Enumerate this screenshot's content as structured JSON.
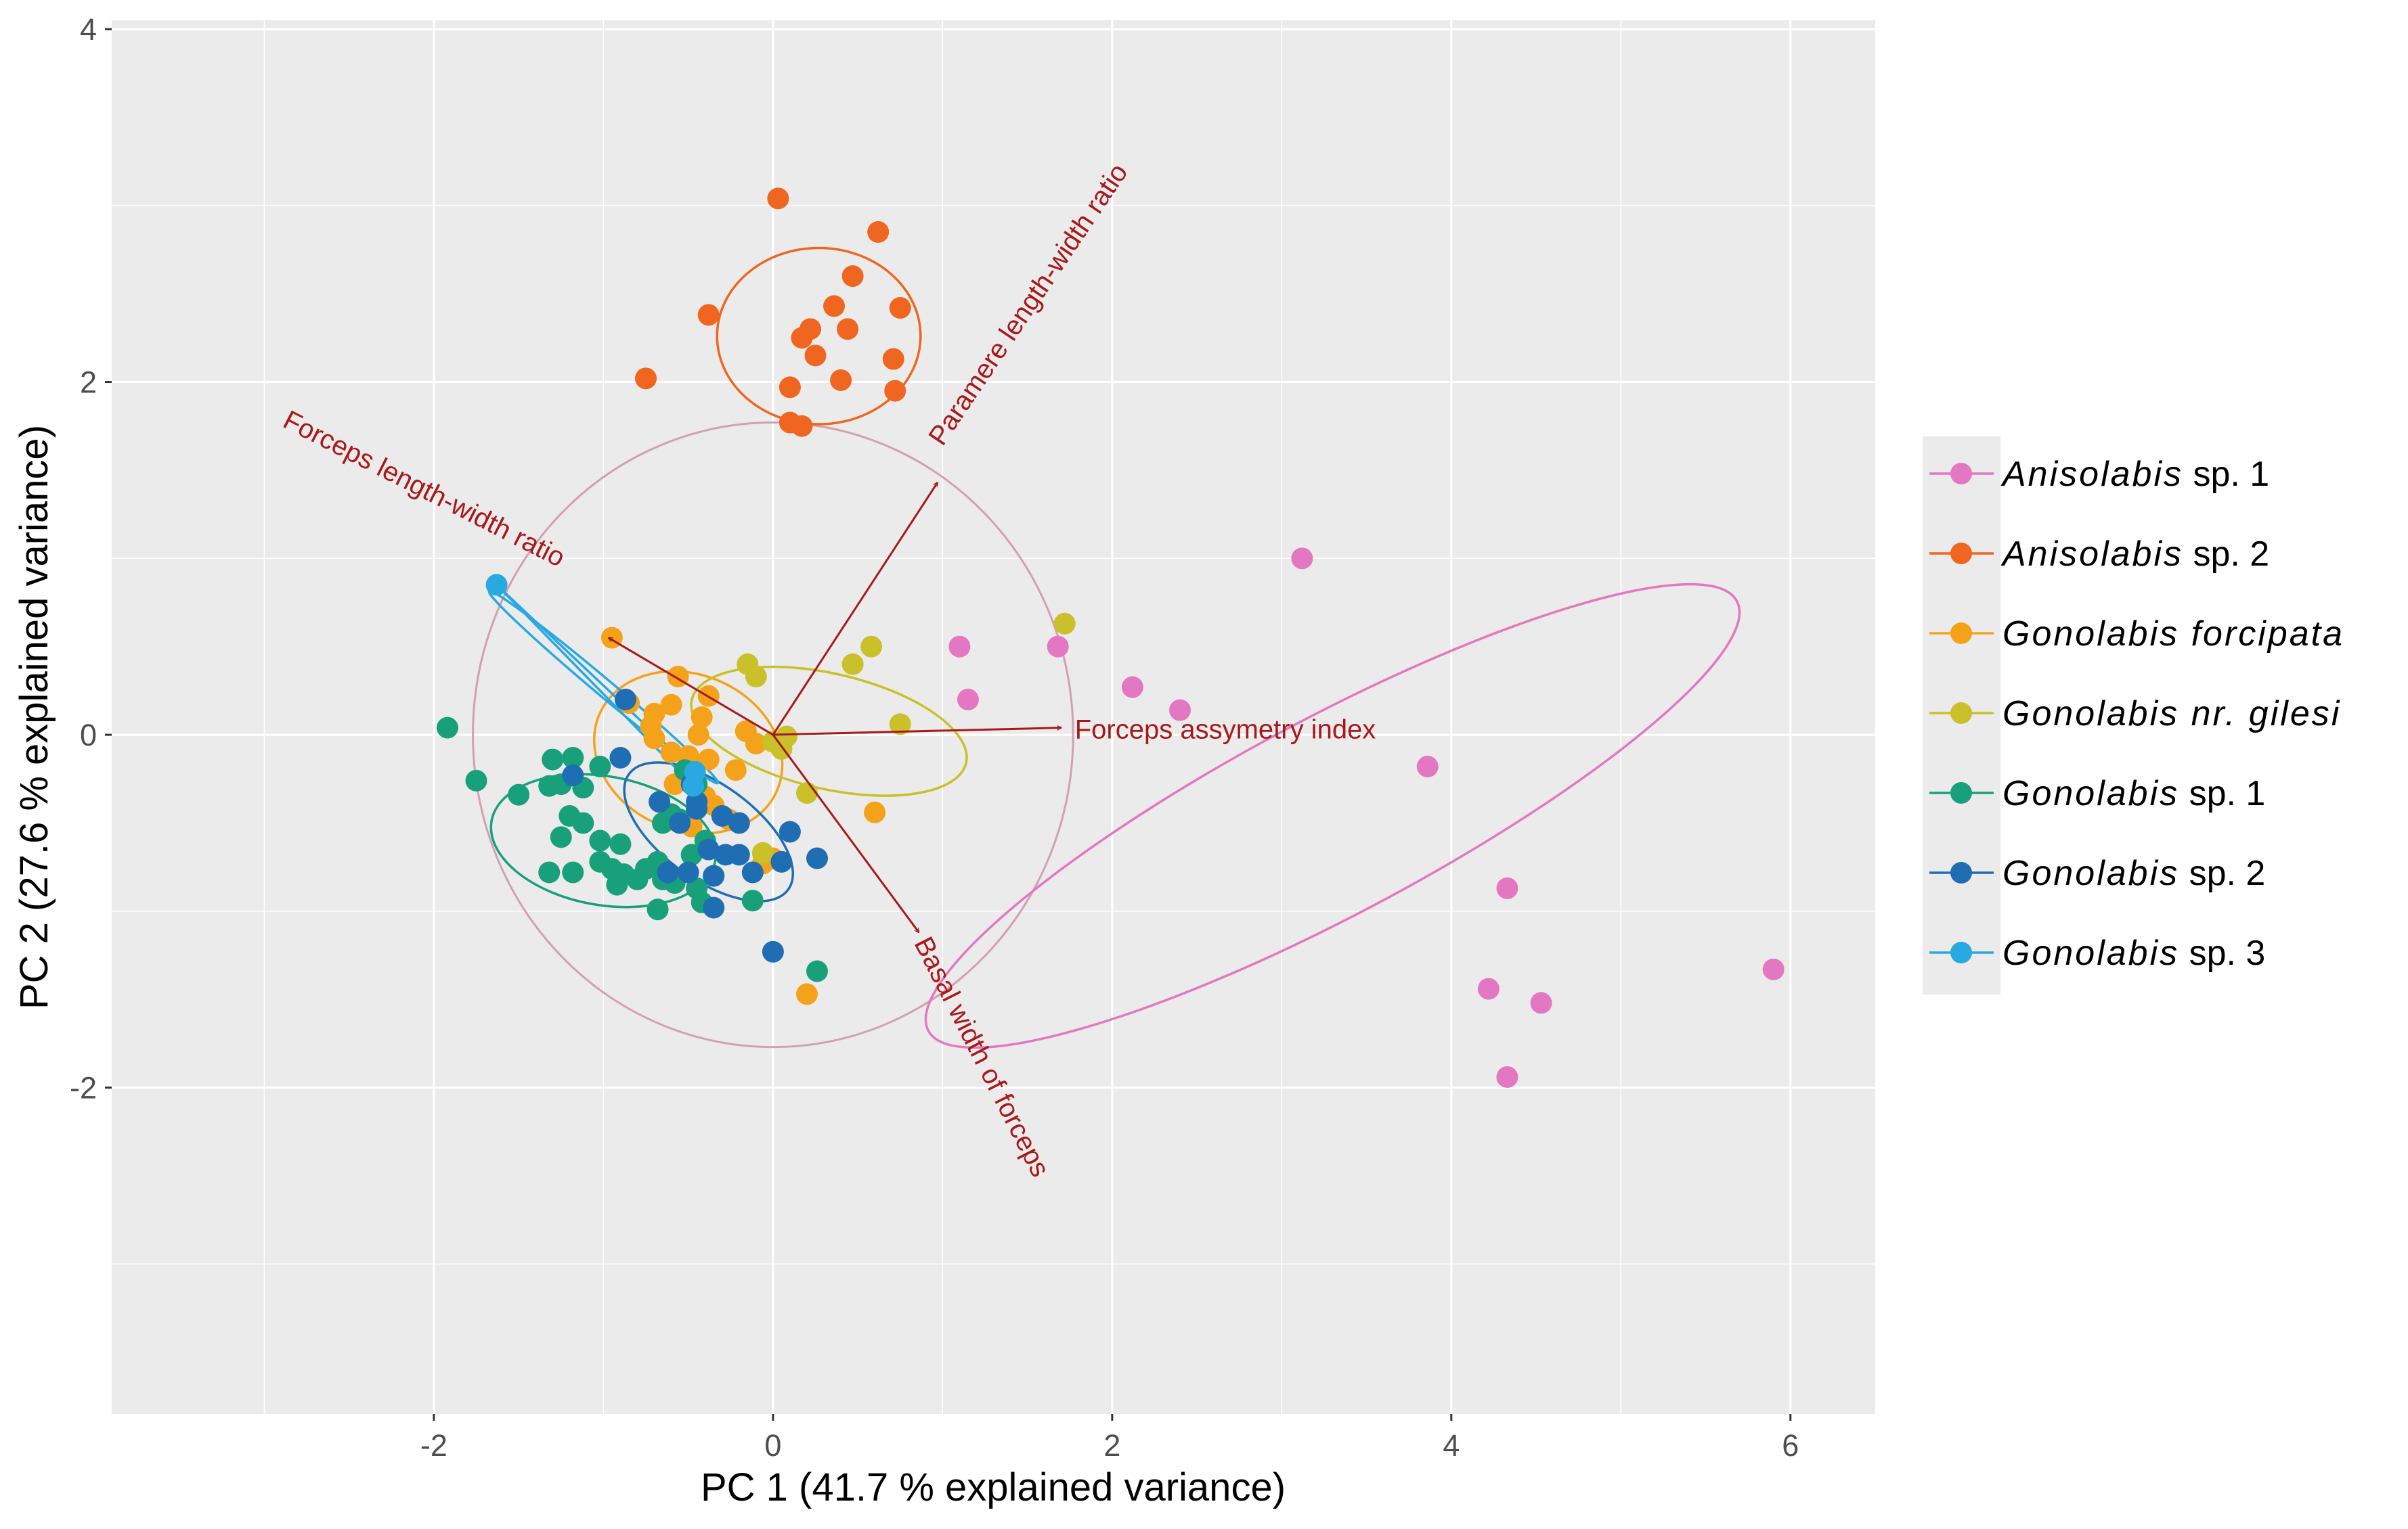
{
  "chart_data": {
    "type": "scatter",
    "xlabel": "PC 1 (41.7 % explained variance)",
    "ylabel": "PC 2 (27.6 % explained variance)",
    "xlim": [
      -3.9,
      6.5
    ],
    "ylim": [
      -3.85,
      4.05
    ],
    "x_ticks": [
      -2,
      0,
      2,
      4,
      6
    ],
    "y_ticks": [
      -2,
      0,
      2,
      4
    ],
    "x_tick_labels": [
      "-2",
      "0",
      "2",
      "4",
      "6"
    ],
    "y_tick_labels": [
      "-2",
      "0",
      "2",
      "4"
    ],
    "grid": true,
    "panel_background": "#ebebeb",
    "legend_position": "right",
    "series": [
      {
        "name_italic": "Anisolabis",
        "name_suffix": " sp. 1",
        "color": "#e377c2",
        "points": [
          [
            1.1,
            0.5
          ],
          [
            1.15,
            0.2
          ],
          [
            1.68,
            0.5
          ],
          [
            2.12,
            0.27
          ],
          [
            2.4,
            0.14
          ],
          [
            3.12,
            1.0
          ],
          [
            3.86,
            -0.18
          ],
          [
            4.33,
            -0.87
          ],
          [
            4.22,
            -1.44
          ],
          [
            4.53,
            -1.52
          ],
          [
            4.33,
            -1.94
          ],
          [
            5.9,
            -1.33
          ]
        ],
        "ellipse": {
          "cx": 3.3,
          "cy": -0.46,
          "rx": 2.7,
          "ry": 0.58,
          "angle": -28
        }
      },
      {
        "name_italic": "Anisolabis",
        "name_suffix": " sp. 2",
        "color": "#f0651f",
        "points": [
          [
            0.03,
            3.04
          ],
          [
            0.62,
            2.85
          ],
          [
            0.47,
            2.6
          ],
          [
            0.36,
            2.43
          ],
          [
            0.75,
            2.42
          ],
          [
            -0.38,
            2.38
          ],
          [
            0.22,
            2.3
          ],
          [
            0.17,
            2.25
          ],
          [
            0.44,
            2.3
          ],
          [
            0.25,
            2.15
          ],
          [
            0.71,
            2.13
          ],
          [
            -0.75,
            2.02
          ],
          [
            0.4,
            2.01
          ],
          [
            0.1,
            1.97
          ],
          [
            0.72,
            1.95
          ],
          [
            0.1,
            1.77
          ],
          [
            0.17,
            1.75
          ]
        ],
        "ellipse": {
          "cx": 0.27,
          "cy": 2.26,
          "rx": 0.6,
          "ry": 0.52,
          "angle": 0
        }
      },
      {
        "name_italic": "Gonolabis",
        "name_suffix": "  forcipata",
        "color": "#f5a21b",
        "points": [
          [
            -0.95,
            0.55
          ],
          [
            -0.56,
            0.33
          ],
          [
            -0.38,
            0.22
          ],
          [
            -0.85,
            0.18
          ],
          [
            -0.6,
            0.17
          ],
          [
            -0.7,
            0.12
          ],
          [
            -0.42,
            0.1
          ],
          [
            -0.72,
            0.05
          ],
          [
            -0.44,
            0.0
          ],
          [
            -0.16,
            0.02
          ],
          [
            -0.1,
            -0.05
          ],
          [
            -0.7,
            -0.02
          ],
          [
            -0.6,
            -0.1
          ],
          [
            -0.5,
            -0.12
          ],
          [
            -0.38,
            -0.14
          ],
          [
            -0.22,
            -0.2
          ],
          [
            -0.58,
            -0.28
          ],
          [
            -0.4,
            -0.35
          ],
          [
            -0.35,
            -0.4
          ],
          [
            -0.26,
            -0.48
          ],
          [
            -0.48,
            -0.52
          ],
          [
            0.6,
            -0.44
          ],
          [
            -0.06,
            -0.73
          ],
          [
            0.0,
            -0.7
          ],
          [
            0.2,
            -1.47
          ]
        ],
        "ellipse": {
          "cx": -0.5,
          "cy": -0.1,
          "rx": 0.57,
          "ry": 0.46,
          "angle": 23
        }
      },
      {
        "name_italic": "Gonolabis",
        "name_suffix": " nr. gilesi",
        "color": "#c9c02a",
        "points": [
          [
            1.72,
            0.63
          ],
          [
            0.58,
            0.5
          ],
          [
            0.47,
            0.4
          ],
          [
            -0.15,
            0.4
          ],
          [
            -0.1,
            0.33
          ],
          [
            0.75,
            0.06
          ],
          [
            0.08,
            -0.01
          ],
          [
            0.0,
            -0.04
          ],
          [
            0.05,
            -0.08
          ],
          [
            0.2,
            -0.33
          ],
          [
            -0.06,
            -0.67
          ]
        ],
        "ellipse": {
          "cx": 0.33,
          "cy": 0.02,
          "rx": 0.83,
          "ry": 0.34,
          "angle": 13
        }
      },
      {
        "name_italic": "Gonolabis",
        "name_suffix": " sp. 1",
        "color": "#18a07a",
        "points": [
          [
            -1.92,
            0.04
          ],
          [
            -1.75,
            -0.26
          ],
          [
            -1.3,
            -0.14
          ],
          [
            -1.18,
            -0.13
          ],
          [
            -1.5,
            -0.34
          ],
          [
            -1.32,
            -0.29
          ],
          [
            -1.25,
            -0.28
          ],
          [
            -1.12,
            -0.3
          ],
          [
            -1.02,
            -0.18
          ],
          [
            -1.2,
            -0.46
          ],
          [
            -1.12,
            -0.5
          ],
          [
            -1.02,
            -0.6
          ],
          [
            -1.25,
            -0.58
          ],
          [
            -0.9,
            -0.62
          ],
          [
            -0.65,
            -0.5
          ],
          [
            -0.55,
            -0.48
          ],
          [
            -0.6,
            -0.45
          ],
          [
            -1.32,
            -0.78
          ],
          [
            -1.18,
            -0.78
          ],
          [
            -1.02,
            -0.72
          ],
          [
            -0.95,
            -0.76
          ],
          [
            -0.88,
            -0.79
          ],
          [
            -0.75,
            -0.76
          ],
          [
            -0.68,
            -0.72
          ],
          [
            -0.48,
            -0.68
          ],
          [
            -0.4,
            -0.6
          ],
          [
            -0.92,
            -0.85
          ],
          [
            -0.8,
            -0.82
          ],
          [
            -0.65,
            -0.82
          ],
          [
            -0.58,
            -0.84
          ],
          [
            -0.45,
            -0.87
          ],
          [
            -0.35,
            -0.8
          ],
          [
            -0.68,
            -0.99
          ],
          [
            -0.42,
            -0.95
          ],
          [
            -0.12,
            -0.94
          ],
          [
            0.26,
            -1.34
          ],
          [
            -0.52,
            -0.2
          ],
          [
            -0.45,
            -0.28
          ]
        ],
        "ellipse": {
          "cx": -1.0,
          "cy": -0.6,
          "rx": 0.67,
          "ry": 0.38,
          "angle": 10
        }
      },
      {
        "name_italic": "Gonolabis",
        "name_suffix": " sp. 2",
        "color": "#1f6db3",
        "points": [
          [
            -0.87,
            0.2
          ],
          [
            -1.18,
            -0.23
          ],
          [
            -0.9,
            -0.13
          ],
          [
            -0.67,
            -0.38
          ],
          [
            -0.48,
            -0.28
          ],
          [
            -0.45,
            -0.38
          ],
          [
            -0.55,
            -0.5
          ],
          [
            -0.45,
            -0.42
          ],
          [
            -0.3,
            -0.46
          ],
          [
            -0.2,
            -0.5
          ],
          [
            0.1,
            -0.55
          ],
          [
            -0.38,
            -0.65
          ],
          [
            -0.28,
            -0.68
          ],
          [
            -0.2,
            -0.68
          ],
          [
            0.26,
            -0.7
          ],
          [
            0.05,
            -0.72
          ],
          [
            -0.62,
            -0.78
          ],
          [
            -0.5,
            -0.78
          ],
          [
            -0.35,
            -0.8
          ],
          [
            -0.12,
            -0.78
          ],
          [
            -0.35,
            -0.98
          ],
          [
            0.0,
            -1.23
          ]
        ],
        "ellipse": {
          "cx": -0.38,
          "cy": -0.55,
          "rx": 0.58,
          "ry": 0.28,
          "angle": 36
        }
      },
      {
        "name_italic": "Gonolabis",
        "name_suffix": " sp. 3",
        "color": "#29a9e1",
        "points": [
          [
            -1.63,
            0.85
          ],
          [
            -0.47,
            -0.29
          ],
          [
            -0.46,
            -0.21
          ]
        ],
        "ellipse": {
          "cx": -1.0,
          "cy": 0.27,
          "rx": 0.88,
          "ry": 0.05,
          "angle": 40
        }
      }
    ],
    "ellipse_overall": {
      "cx": 0.0,
      "cy": 0.0,
      "rx": 1.77,
      "ry": 1.77,
      "color": "#d3a0b0"
    },
    "loadings": [
      {
        "label": "Paramere length-width ratio",
        "x": 0.97,
        "y": 1.43,
        "label_x": 1.0,
        "label_y": 1.63,
        "rotate": -56
      },
      {
        "label": "Forceps length-width ratio",
        "x": -0.97,
        "y": 0.55,
        "label_x": -2.9,
        "label_y": 1.75,
        "rotate": 27
      },
      {
        "label": "Forceps assymetry index",
        "x": 1.7,
        "y": 0.04,
        "label_x": 1.78,
        "label_y": -0.02,
        "rotate": 0
      },
      {
        "label": "Basal width of forceps",
        "x": 0.86,
        "y": -1.12,
        "label_x": 0.83,
        "label_y": -1.18,
        "rotate": 63
      }
    ],
    "loading_color": "#a6191c"
  }
}
